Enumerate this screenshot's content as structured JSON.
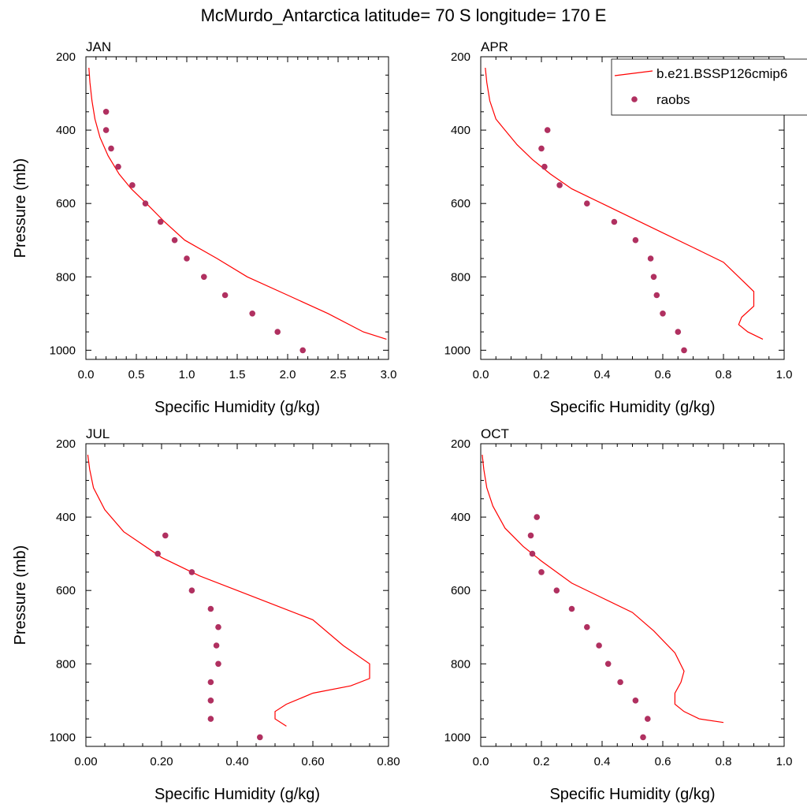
{
  "title": "McMurdo_Antarctica  latitude= 70 S longitude= 170 E",
  "colors": {
    "model": "#ff0000",
    "obs": "#b03060"
  },
  "legend": {
    "model_label": "b.e21.BSSP126cmip6",
    "obs_label": "raobs",
    "placement": "top-right of APR panel"
  },
  "chart_data": [
    {
      "type": "line",
      "panel": "JAN",
      "xlabel": "Specific Humidity (g/kg)",
      "ylabel": "Pressure (mb)",
      "xlim": [
        0,
        3.0
      ],
      "ylim": [
        200,
        1025
      ],
      "y_reversed": true,
      "xticks": [
        "0.0",
        "0.5",
        "1.0",
        "1.5",
        "2.0",
        "2.5",
        "3.0"
      ],
      "yticks": [
        "200",
        "400",
        "600",
        "800",
        "1000"
      ],
      "series": [
        {
          "name": "b.e21.BSSP126cmip6",
          "kind": "line",
          "x": [
            0.03,
            0.04,
            0.06,
            0.09,
            0.14,
            0.22,
            0.33,
            0.45,
            0.6,
            0.78,
            0.98,
            1.3,
            1.6,
            2.0,
            2.4,
            2.75,
            2.98
          ],
          "y": [
            230,
            270,
            320,
            370,
            420,
            470,
            520,
            560,
            600,
            650,
            700,
            750,
            800,
            850,
            900,
            950,
            970
          ]
        },
        {
          "name": "raobs",
          "kind": "scatter",
          "x": [
            0.2,
            0.2,
            0.25,
            0.32,
            0.46,
            0.59,
            0.74,
            0.88,
            1.0,
            1.17,
            1.38,
            1.65,
            1.9,
            2.15
          ],
          "y": [
            350,
            400,
            450,
            500,
            550,
            600,
            650,
            700,
            750,
            800,
            850,
            900,
            950,
            1000
          ]
        }
      ]
    },
    {
      "type": "line",
      "panel": "APR",
      "xlabel": "Specific Humidity (g/kg)",
      "ylabel": "",
      "xlim": [
        0,
        1.0
      ],
      "ylim": [
        200,
        1025
      ],
      "y_reversed": true,
      "xticks": [
        "0.0",
        "0.2",
        "0.4",
        "0.6",
        "0.8",
        "1.0"
      ],
      "yticks": [
        "200",
        "400",
        "600",
        "800",
        "1000"
      ],
      "series": [
        {
          "name": "b.e21.BSSP126cmip6",
          "kind": "line",
          "x": [
            0.015,
            0.02,
            0.03,
            0.05,
            0.08,
            0.12,
            0.17,
            0.23,
            0.3,
            0.4,
            0.5,
            0.6,
            0.7,
            0.8,
            0.85,
            0.9,
            0.9,
            0.86,
            0.85,
            0.88,
            0.93
          ],
          "y": [
            230,
            270,
            320,
            370,
            400,
            440,
            480,
            520,
            560,
            600,
            640,
            680,
            720,
            760,
            800,
            840,
            880,
            910,
            930,
            950,
            970
          ]
        },
        {
          "name": "raobs",
          "kind": "scatter",
          "x": [
            0.22,
            0.2,
            0.21,
            0.26,
            0.35,
            0.44,
            0.51,
            0.56,
            0.57,
            0.58,
            0.6,
            0.65,
            0.67
          ],
          "y": [
            400,
            450,
            500,
            550,
            600,
            650,
            700,
            750,
            800,
            850,
            900,
            950,
            1000
          ]
        }
      ]
    },
    {
      "type": "line",
      "panel": "JUL",
      "xlabel": "Specific Humidity (g/kg)",
      "ylabel": "Pressure (mb)",
      "xlim": [
        0,
        0.8
      ],
      "ylim": [
        200,
        1025
      ],
      "y_reversed": true,
      "xticks": [
        "0.00",
        "0.20",
        "0.40",
        "0.60",
        "0.80"
      ],
      "yticks": [
        "200",
        "400",
        "600",
        "800",
        "1000"
      ],
      "series": [
        {
          "name": "b.e21.BSSP126cmip6",
          "kind": "line",
          "x": [
            0.005,
            0.01,
            0.02,
            0.05,
            0.1,
            0.2,
            0.3,
            0.4,
            0.5,
            0.6,
            0.68,
            0.75,
            0.75,
            0.7,
            0.6,
            0.53,
            0.5,
            0.5,
            0.53
          ],
          "y": [
            230,
            270,
            320,
            380,
            440,
            510,
            560,
            600,
            640,
            680,
            750,
            800,
            840,
            860,
            880,
            910,
            930,
            950,
            970
          ]
        },
        {
          "name": "raobs",
          "kind": "scatter",
          "x": [
            0.21,
            0.19,
            0.28,
            0.28,
            0.33,
            0.35,
            0.345,
            0.35,
            0.33,
            0.33,
            0.33,
            0.46
          ],
          "y": [
            450,
            500,
            550,
            600,
            650,
            700,
            750,
            800,
            850,
            900,
            950,
            1000
          ]
        }
      ]
    },
    {
      "type": "line",
      "panel": "OCT",
      "xlabel": "Specific Humidity (g/kg)",
      "ylabel": "",
      "xlim": [
        0,
        1.0
      ],
      "ylim": [
        200,
        1025
      ],
      "y_reversed": true,
      "xticks": [
        "0.0",
        "0.2",
        "0.4",
        "0.6",
        "0.8",
        "1.0"
      ],
      "yticks": [
        "200",
        "400",
        "600",
        "800",
        "1000"
      ],
      "series": [
        {
          "name": "b.e21.BSSP126cmip6",
          "kind": "line",
          "x": [
            0.005,
            0.01,
            0.02,
            0.04,
            0.08,
            0.14,
            0.2,
            0.3,
            0.4,
            0.5,
            0.57,
            0.64,
            0.67,
            0.66,
            0.64,
            0.64,
            0.67,
            0.72,
            0.8
          ],
          "y": [
            230,
            270,
            320,
            370,
            430,
            480,
            520,
            580,
            620,
            660,
            710,
            770,
            820,
            850,
            880,
            910,
            930,
            950,
            960
          ]
        },
        {
          "name": "raobs",
          "kind": "scatter",
          "x": [
            0.185,
            0.165,
            0.17,
            0.2,
            0.25,
            0.3,
            0.35,
            0.39,
            0.42,
            0.46,
            0.51,
            0.55,
            0.535
          ],
          "y": [
            400,
            450,
            500,
            550,
            600,
            650,
            700,
            750,
            800,
            850,
            900,
            950,
            1000
          ]
        }
      ]
    }
  ]
}
